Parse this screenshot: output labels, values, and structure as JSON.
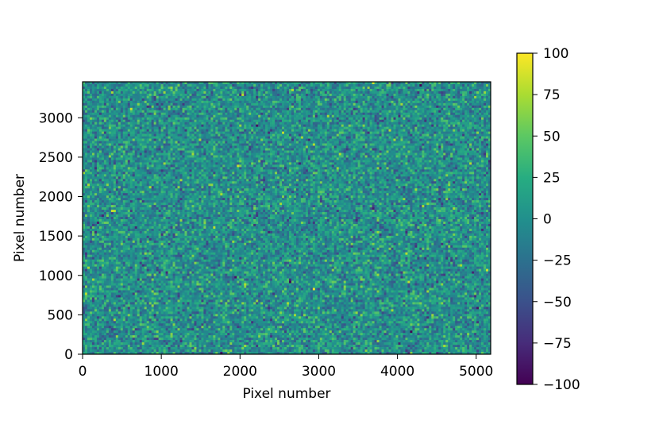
{
  "chart_data": {
    "type": "heatmap",
    "title": "",
    "xlabel": "Pixel number",
    "ylabel": "Pixel number",
    "xlim": [
      0,
      5184
    ],
    "ylim": [
      3456,
      0
    ],
    "x_ticks": [
      0,
      1000,
      2000,
      3000,
      4000,
      5000
    ],
    "x_tick_labels": [
      "0",
      "1000",
      "2000",
      "3000",
      "4000",
      "5000"
    ],
    "y_ticks": [
      0,
      500,
      1000,
      1500,
      2000,
      2500,
      3000
    ],
    "y_tick_labels": [
      "0",
      "500",
      "1000",
      "1500",
      "2000",
      "2500",
      "3000"
    ],
    "image_extent": {
      "x": [
        0,
        5184
      ],
      "y": [
        0,
        3456
      ]
    },
    "values_description_distribution": {
      "mean": 0,
      "std": 25
    },
    "colormap": "viridis",
    "colorbar": {
      "range": [
        -100,
        100
      ],
      "ticks": [
        100,
        75,
        50,
        25,
        0,
        -25,
        -50,
        -75,
        -100
      ],
      "tick_labels": [
        "100",
        "75",
        "50",
        "25",
        "0",
        "−25",
        "−50",
        "−75",
        "−100"
      ],
      "placement": "right"
    },
    "grid": false
  }
}
